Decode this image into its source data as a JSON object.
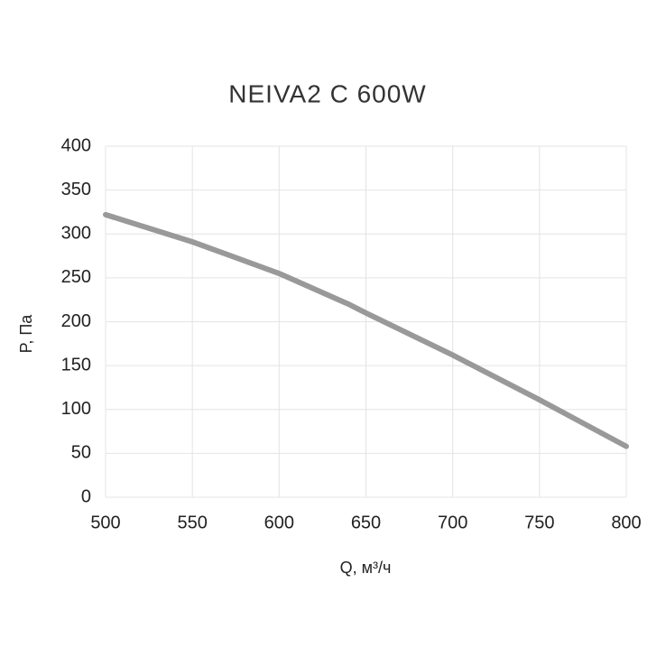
{
  "chart_data": {
    "type": "line",
    "title": "NEIVA2 C 600W",
    "x_label": "Q, м³/ч",
    "y_label": "P, Па",
    "x": [
      500,
      550,
      600,
      640,
      650,
      700,
      750,
      800
    ],
    "series": [
      {
        "color": "#999999",
        "values": [
          322,
          291,
          255,
          220,
          210,
          162,
          111,
          58
        ]
      }
    ],
    "xlim": [
      500,
      800
    ],
    "xticks": [
      500,
      550,
      600,
      650,
      700,
      750,
      800
    ],
    "ylim": [
      0,
      400
    ],
    "yticks": [
      0,
      50,
      100,
      150,
      200,
      250,
      300,
      350,
      400
    ],
    "grid": true
  }
}
